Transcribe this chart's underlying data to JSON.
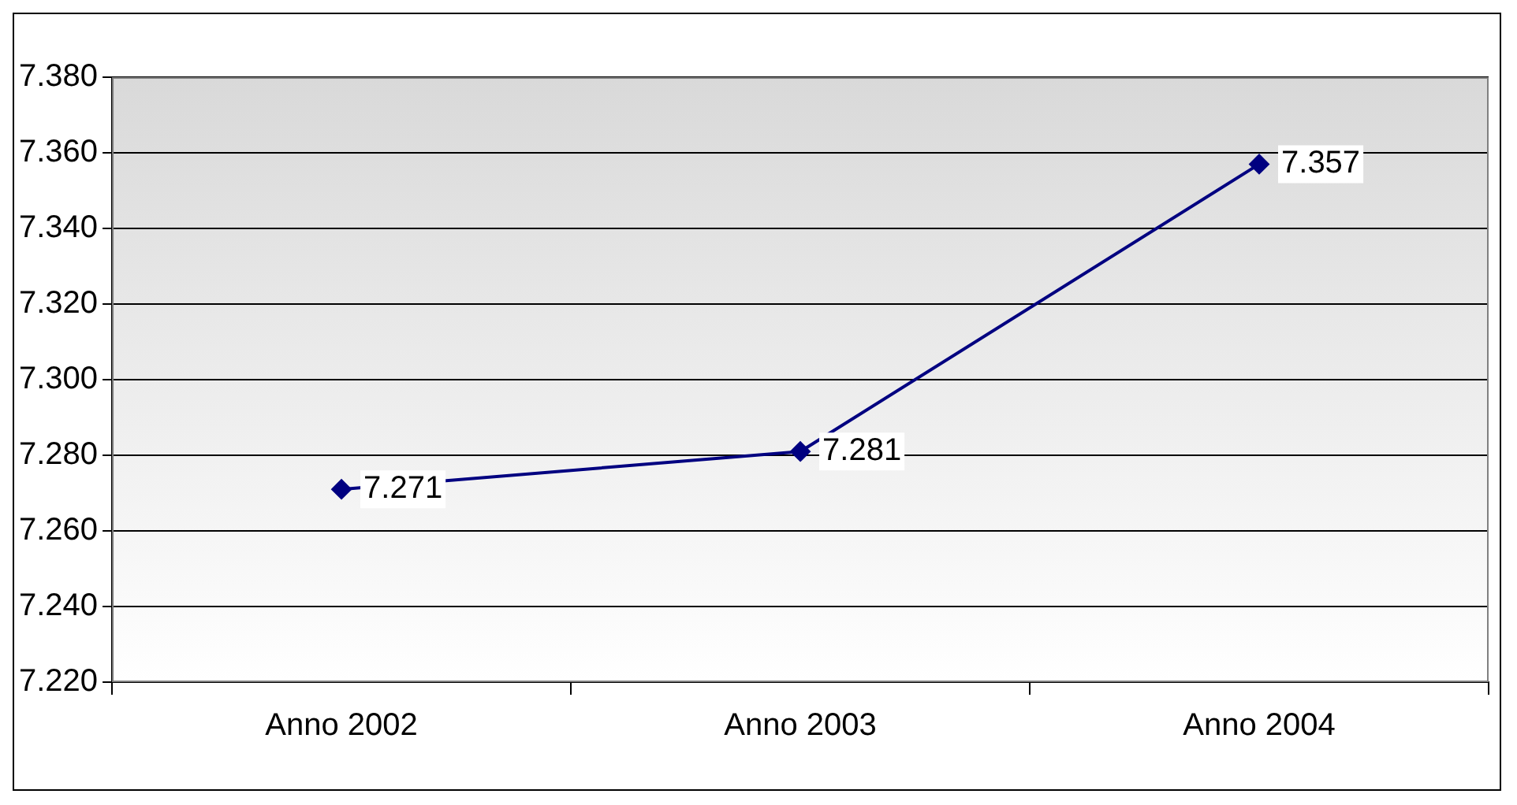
{
  "chart_data": {
    "type": "line",
    "categories": [
      "Anno 2002",
      "Anno 2003",
      "Anno 2004"
    ],
    "series": [
      {
        "color": "#000080",
        "values": [
          7271,
          7281,
          7357
        ],
        "value_labels": [
          "7.271",
          "7.281",
          "7.357"
        ]
      }
    ],
    "ylim": [
      7220,
      7380
    ],
    "yticks": [
      {
        "value": 7220,
        "label": "7.220"
      },
      {
        "value": 7240,
        "label": "7.240"
      },
      {
        "value": 7260,
        "label": "7.260"
      },
      {
        "value": 7280,
        "label": "7.280"
      },
      {
        "value": 7300,
        "label": "7.300"
      },
      {
        "value": 7320,
        "label": "7.320"
      },
      {
        "value": 7340,
        "label": "7.340"
      },
      {
        "value": 7360,
        "label": "7.360"
      },
      {
        "value": 7380,
        "label": "7.380"
      }
    ],
    "grid": "y",
    "legend": false,
    "marker": "diamond",
    "line_style": "solid"
  }
}
